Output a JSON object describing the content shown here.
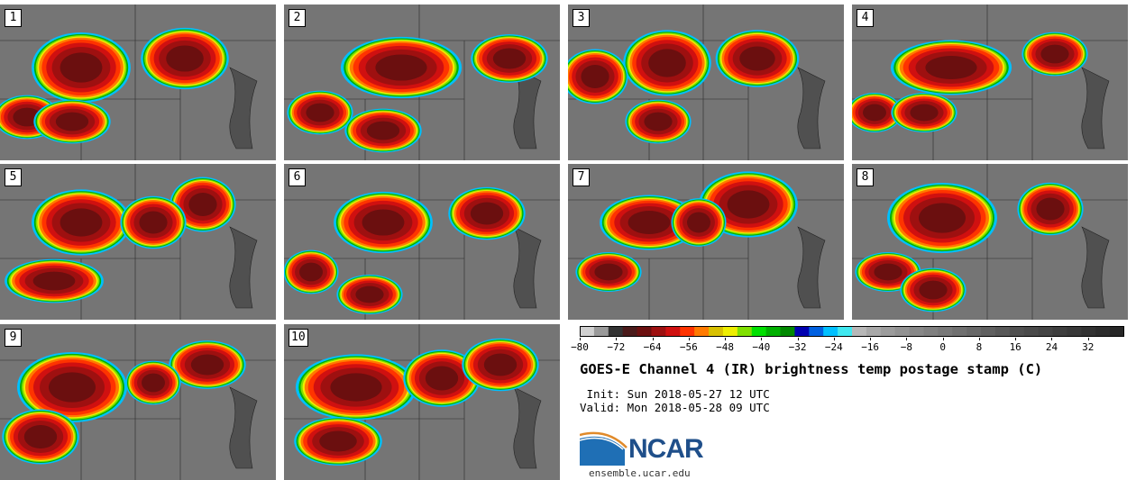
{
  "panels": [
    {
      "label": "1"
    },
    {
      "label": "2"
    },
    {
      "label": "3"
    },
    {
      "label": "4"
    },
    {
      "label": "5"
    },
    {
      "label": "6"
    },
    {
      "label": "7"
    },
    {
      "label": "8"
    },
    {
      "label": "9"
    },
    {
      "label": "10"
    }
  ],
  "colorbar": {
    "min": -80,
    "max": 40,
    "tick_labels": [
      "−80",
      "−72",
      "−64",
      "−56",
      "−48",
      "−40",
      "−32",
      "−24",
      "−16",
      "−8",
      "0",
      "8",
      "16",
      "24",
      "32"
    ],
    "colors": [
      "#d0d0d0",
      "#9a9a9a",
      "#333333",
      "#4a1a1a",
      "#6b0f0f",
      "#9e1010",
      "#d01010",
      "#ff3300",
      "#ff7a00",
      "#d8c000",
      "#eeee00",
      "#80e000",
      "#00e000",
      "#00b000",
      "#008800",
      "#0000b0",
      "#0060e0",
      "#00c0ff",
      "#40e8f0",
      "#b8b8b8",
      "#a8a8a8",
      "#9c9c9c",
      "#929292",
      "#888888",
      "#808080",
      "#787878",
      "#707070",
      "#686868",
      "#606060",
      "#585858",
      "#505050",
      "#4a4a4a",
      "#444444",
      "#3e3e3e",
      "#383838",
      "#323232",
      "#2c2c2c",
      "#262626"
    ]
  },
  "title": "GOES-E Channel 4 (IR) brightness temp postage stamp (C)",
  "init": " Init: Sun 2018-05-27 12 UTC",
  "valid": "Valid: Mon 2018-05-28 09 UTC",
  "logo": {
    "text": "NCAR",
    "url": "ensemble.ucar.edu",
    "brand_color": "#1f4f8a"
  }
}
